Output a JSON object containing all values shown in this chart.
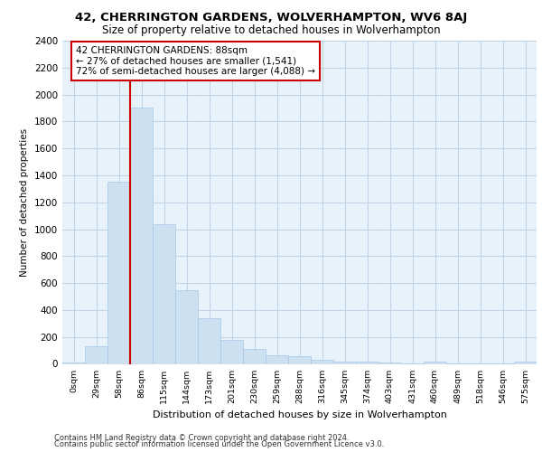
{
  "title1": "42, CHERRINGTON GARDENS, WOLVERHAMPTON, WV6 8AJ",
  "title2": "Size of property relative to detached houses in Wolverhampton",
  "xlabel": "Distribution of detached houses by size in Wolverhampton",
  "ylabel": "Number of detached properties",
  "footer1": "Contains HM Land Registry data © Crown copyright and database right 2024.",
  "footer2": "Contains public sector information licensed under the Open Government Licence v3.0.",
  "bar_color": "#cce0f0",
  "bar_edgecolor": "#a8c8e8",
  "grid_color": "#c0d4e8",
  "bg_color": "#e8f2fa",
  "annotation_box_color": "#cc0000",
  "vline_color": "#cc0000",
  "categories": [
    "0sqm",
    "29sqm",
    "58sqm",
    "86sqm",
    "115sqm",
    "144sqm",
    "173sqm",
    "201sqm",
    "230sqm",
    "259sqm",
    "288sqm",
    "316sqm",
    "345sqm",
    "374sqm",
    "403sqm",
    "431sqm",
    "460sqm",
    "489sqm",
    "518sqm",
    "546sqm",
    "575sqm"
  ],
  "values": [
    10,
    130,
    1350,
    1900,
    1040,
    550,
    340,
    175,
    110,
    65,
    55,
    30,
    20,
    15,
    10,
    5,
    20,
    5,
    5,
    5,
    15
  ],
  "property_bin_index": 3,
  "annotation_line1": "42 CHERRINGTON GARDENS: 88sqm",
  "annotation_line2": "← 27% of detached houses are smaller (1,541)",
  "annotation_line3": "72% of semi-detached houses are larger (4,088) →",
  "ylim": [
    0,
    2400
  ],
  "yticks": [
    0,
    200,
    400,
    600,
    800,
    1000,
    1200,
    1400,
    1600,
    1800,
    2000,
    2200,
    2400
  ]
}
